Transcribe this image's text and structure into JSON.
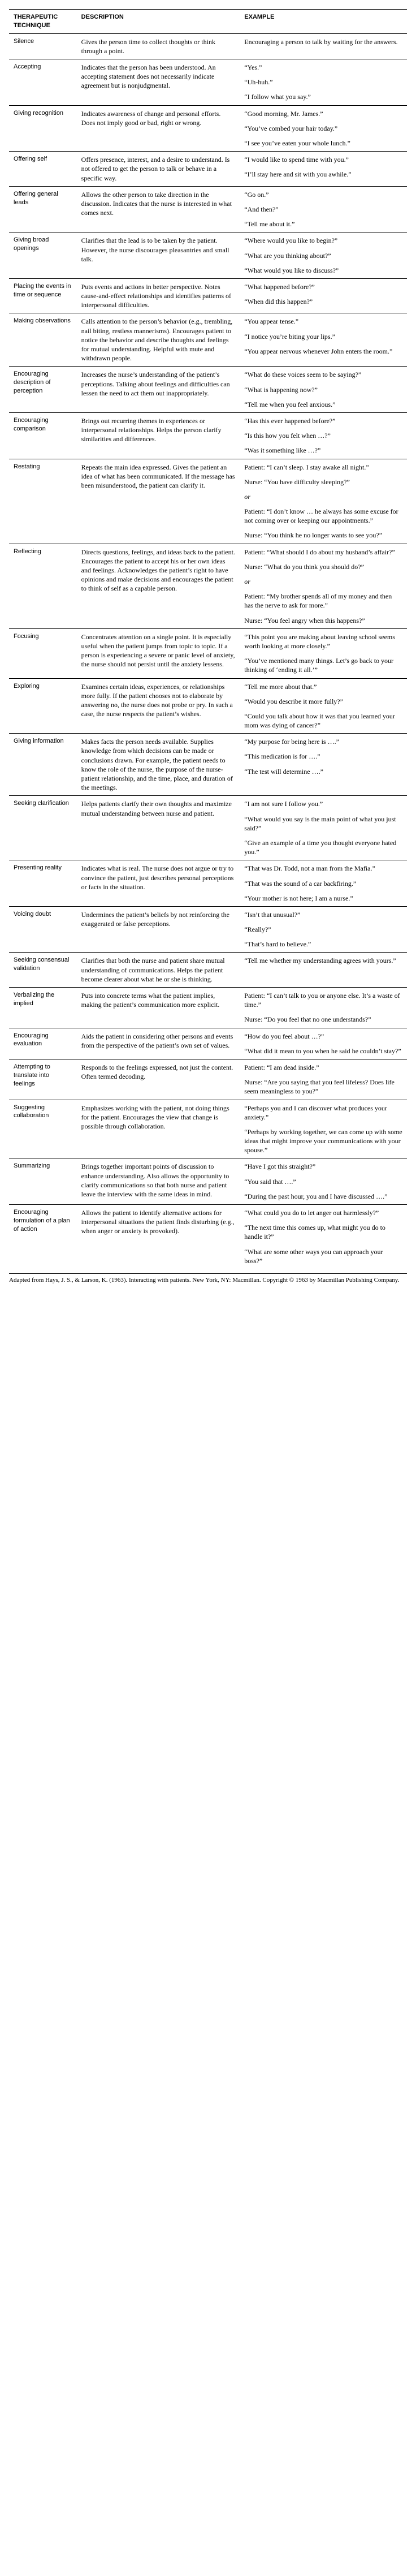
{
  "headers": {
    "c1": "THERAPEUTIC TECHNIQUE",
    "c2": "DESCRIPTION",
    "c3": "EXAMPLE"
  },
  "rows": [
    {
      "technique": "Silence",
      "description": "Gives the person time to collect thoughts or think through a point.",
      "examples": [
        "Encouraging a person to talk by waiting for the answers."
      ]
    },
    {
      "technique": "Accepting",
      "description": "Indicates that the person has been understood. An accepting statement does not necessarily indicate agreement but is nonjudgmental.",
      "examples": [
        "“Yes.”",
        "“Uh-huh.”",
        "“I follow what you say.”"
      ]
    },
    {
      "technique": "Giving recognition",
      "description": "Indicates awareness of change and personal efforts. Does not imply good or bad, right or wrong.",
      "examples": [
        "“Good morning, Mr. James.”",
        "“You’ve combed your hair today.”",
        "“I see you’ve eaten your whole lunch.”"
      ]
    },
    {
      "technique": "Offering self",
      "description": "Offers presence, interest, and a desire to understand. Is not offered to get the person to talk or behave in a specific way.",
      "examples": [
        "“I would like to spend time with you.”",
        "“I’ll stay here and sit with you awhile.”"
      ]
    },
    {
      "technique": "Offering general leads",
      "description": "Allows the other person to take direction in the discussion. Indicates that the nurse is interested in what comes next.",
      "examples": [
        "“Go on.”",
        "“And then?”",
        "“Tell me about it.”"
      ]
    },
    {
      "technique": "Giving broad openings",
      "description": "Clarifies that the lead is to be taken by the patient. However, the nurse discourages pleasantries and small talk.",
      "examples": [
        "“Where would you like to begin?”",
        "“What are you thinking about?”",
        "“What would you like to discuss?”"
      ]
    },
    {
      "technique": "Placing the events in time or sequence",
      "description": "Puts events and actions in better perspective. Notes cause-and-effect relationships and identifies patterns of interpersonal difficulties.",
      "examples": [
        "“What happened before?”",
        "“When did this happen?”"
      ]
    },
    {
      "technique": "Making observations",
      "description": "Calls attention to the person’s behavior (e.g., trembling, nail biting, restless mannerisms). Encourages patient to notice the behavior and describe thoughts and feelings for mutual understanding. Helpful with mute and withdrawn people.",
      "examples": [
        "“You appear tense.”",
        "“I notice you’re biting your lips.”",
        "“You appear nervous whenever John enters the room.”"
      ]
    },
    {
      "technique": "Encouraging description of perception",
      "description": "Increases the nurse’s understanding of the patient’s perceptions. Talking about feelings and difficulties can lessen the need to act them out inappropriately.",
      "examples": [
        "“What do these voices seem to be saying?”",
        "“What is happening now?”",
        "“Tell me when you feel anxious.”"
      ]
    },
    {
      "technique": "Encouraging comparison",
      "description": "Brings out recurring themes in experiences or interpersonal relationships. Helps the person clarify similarities and differences.",
      "examples": [
        "“Has this ever happened before?”",
        "“Is this how you felt when …?”",
        "“Was it something like …?”"
      ]
    },
    {
      "technique": "Restating",
      "description": "Repeats the main idea expressed. Gives the patient an idea of what has been communicated. If the message has been misunderstood, the patient can clarify it.",
      "examples": [
        "Patient: “I can’t sleep. I stay awake all night.”",
        "Nurse: “You have difficulty sleeping?”",
        "or",
        "Patient: “I don’t know … he always has some excuse for not coming over or keeping our appointments.”",
        "Nurse: “You think he no longer wants to see you?”"
      ]
    },
    {
      "technique": "Reflecting",
      "description": "Directs questions, feelings, and ideas back to the patient. Encourages the patient to accept his or her own ideas and feelings. Acknowledges the patient’s right to have opinions and make decisions and encourages the patient to think of self as a capable person.",
      "examples": [
        "Patient: “What should I do about my husband’s affair?”",
        "Nurse: “What do you think you should do?”",
        "or",
        "Patient: “My brother spends all of my money and then has the nerve to ask for more.”",
        "Nurse: “You feel angry when this happens?”"
      ]
    },
    {
      "technique": "Focusing",
      "description": "Concentrates attention on a single point. It is especially useful when the patient jumps from topic to topic. If a person is experiencing a severe or panic level of anxiety, the nurse should not persist until the anxiety lessens.",
      "examples": [
        "“This point you are making about leaving school seems worth looking at more closely.”",
        "“You’ve mentioned many things. Let’s go back to your thinking of ‘ending it all.’”"
      ]
    },
    {
      "technique": "Exploring",
      "description": "Examines certain ideas, experiences, or relationships more fully. If the patient chooses not to elaborate by answering no, the nurse does not probe or pry. In such a case, the nurse respects the patient’s wishes.",
      "examples": [
        "“Tell me more about that.”",
        "“Would you describe it more fully?”",
        "“Could you talk about how it was that you learned your mom was dying of cancer?”"
      ]
    },
    {
      "technique": "Giving information",
      "description": "Makes facts the person needs available. Supplies knowledge from which decisions can be made or conclusions drawn. For example, the patient needs to know the role of the nurse, the purpose of the nurse-patient relationship, and the time, place, and duration of the meetings.",
      "examples": [
        "“My purpose for being here is ….”",
        "“This medication is for ….”",
        "“The test will determine ….”"
      ]
    },
    {
      "technique": "Seeking clarification",
      "description": "Helps patients clarify their own thoughts and maximize mutual understanding between nurse and patient.",
      "examples": [
        "“I am not sure I follow you.”",
        "“What would you say is the main point of what you just said?”",
        "“Give an example of a time you thought everyone hated you.”"
      ]
    },
    {
      "technique": "Presenting reality",
      "description": "Indicates what is real. The nurse does not argue or try to convince the patient, just describes personal perceptions or facts in the situation.",
      "examples": [
        "“That was Dr. Todd, not a man from the Mafia.”",
        "“That was the sound of a car backfiring.”",
        "“Your mother is not here; I am a nurse.”"
      ]
    },
    {
      "technique": "Voicing doubt",
      "description": "Undermines the patient’s beliefs by not reinforcing the exaggerated or false perceptions.",
      "examples": [
        "“Isn’t that unusual?”",
        "“Really?”",
        "“That’s hard to believe.”"
      ]
    },
    {
      "technique": "Seeking consensual validation",
      "description": "Clarifies that both the nurse and patient share mutual understanding of communications. Helps the patient become clearer about what he or she is thinking.",
      "examples": [
        "“Tell me whether my understanding agrees with yours.”"
      ]
    },
    {
      "technique": "Verbalizing the implied",
      "description": "Puts into concrete terms what the patient implies, making the patient’s communication more explicit.",
      "examples": [
        "Patient: “I can’t talk to you or anyone else. It’s a waste of time.”",
        "Nurse: “Do you feel that no one understands?”"
      ]
    },
    {
      "technique": "Encouraging evaluation",
      "description": "Aids the patient in considering other persons and events from the perspective of the patient’s own set of values.",
      "examples": [
        "“How do you feel about …?”",
        "“What did it mean to you when he said he couldn’t stay?”"
      ]
    },
    {
      "technique": "Attempting to translate into feelings",
      "description": "Responds to the feelings expressed, not just the content. Often termed decoding.",
      "examples": [
        "Patient: “I am dead inside.”",
        "Nurse: “Are you saying that you feel lifeless? Does life seem meaningless to you?”"
      ]
    },
    {
      "technique": "Suggesting collaboration",
      "description": "Emphasizes working with the patient, not doing things for the patient. Encourages the view that change is possible through collaboration.",
      "examples": [
        "“Perhaps you and I can discover what produces your anxiety.”",
        "“Perhaps by working together, we can come up with some ideas that might improve your communications with your spouse.”"
      ]
    },
    {
      "technique": "Summarizing",
      "description": "Brings together important points of discussion to enhance understanding. Also allows the opportunity to clarify communications so that both nurse and patient leave the interview with the same ideas in mind.",
      "examples": [
        "“Have I got this straight?”",
        "“You said that ….”",
        "“During the past hour, you and I have discussed ….”"
      ]
    },
    {
      "technique": "Encouraging formulation of a plan of action",
      "description": "Allows the patient to identify alternative actions for interpersonal situations the patient finds disturbing (e.g., when anger or anxiety is provoked).",
      "examples": [
        "“What could you do to let anger out harmlessly?”",
        "“The next time this comes up, what might you do to handle it?”",
        "“What are some other ways you can approach your boss?”"
      ]
    }
  ],
  "citation": "Adapted from Hays, J. S., & Larson, K. (1963). Interacting with patients. New York, NY: Macmillan. Copyright © 1963 by Macmillan Publishing Company."
}
